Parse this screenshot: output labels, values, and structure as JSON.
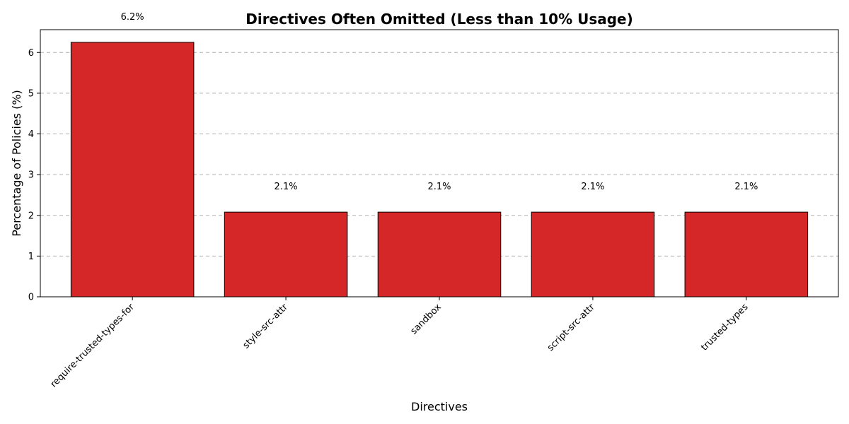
{
  "chart_data": {
    "type": "bar",
    "title": "Directives Often Omitted (Less than 10% Usage)",
    "xlabel": "Directives",
    "ylabel": "Percentage of Policies (%)",
    "categories": [
      "require-trusted-types-for",
      "style-src-attr",
      "sandbox",
      "script-src-attr",
      "trusted-types"
    ],
    "values": [
      6.25,
      2.08,
      2.08,
      2.08,
      2.08
    ],
    "data_labels": [
      "6.2%",
      "2.1%",
      "2.1%",
      "2.1%",
      "2.1%"
    ],
    "ylim": [
      0,
      6.56
    ],
    "yticks": [
      0,
      1,
      2,
      3,
      4,
      5,
      6
    ],
    "grid": "y-dashed",
    "bar_color": "#d62728",
    "bar_edge_color": "#000000"
  }
}
